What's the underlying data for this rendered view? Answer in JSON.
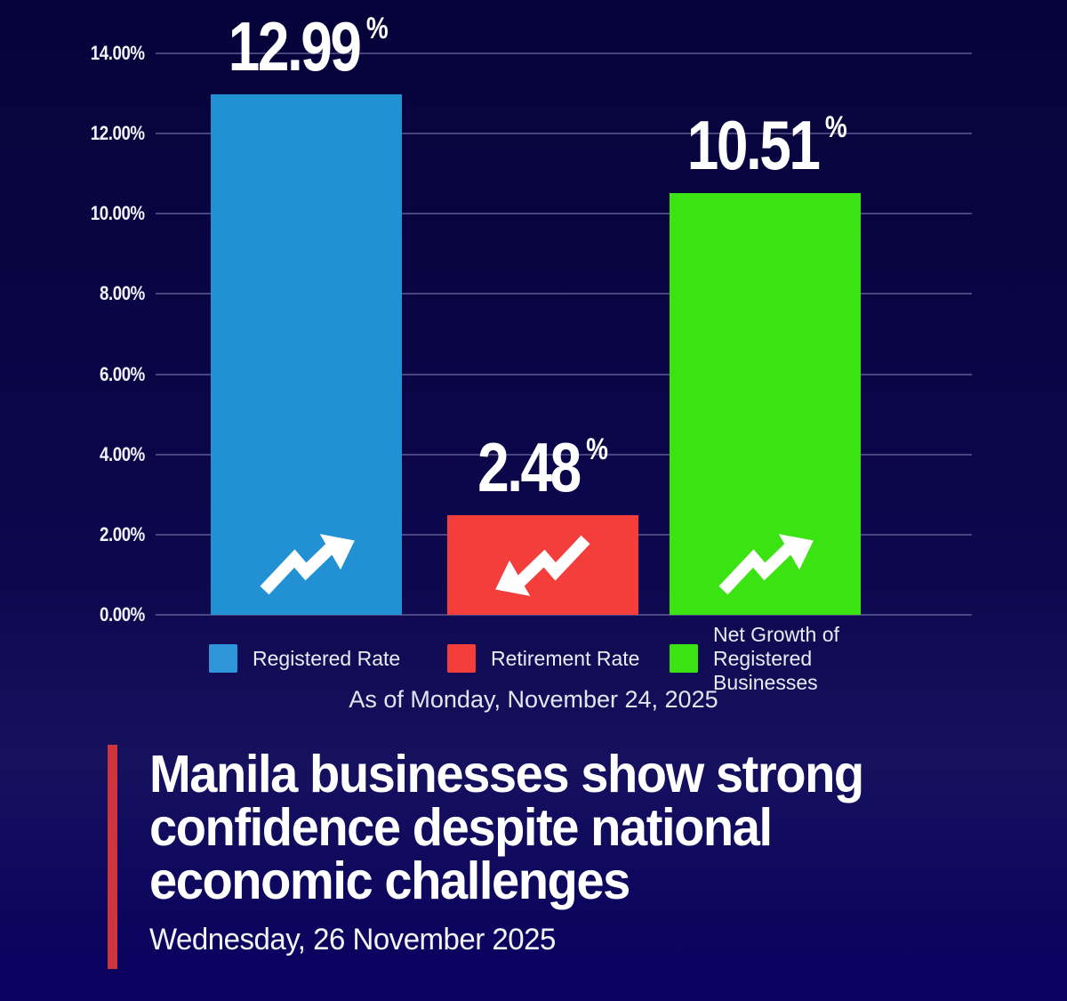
{
  "chart_data": {
    "type": "bar",
    "title": "",
    "categories": [
      "Registered Rate",
      "Retirement Rate",
      "Net Growth of Registered Businesses"
    ],
    "values": [
      12.99,
      2.48,
      10.51
    ],
    "value_labels": [
      "12.99",
      "2.48",
      "10.51"
    ],
    "unit": "%",
    "bar_colors": [
      "#2191d4",
      "#f33e3c",
      "#3ce312"
    ],
    "trends": [
      "up",
      "down",
      "up"
    ],
    "ylim": [
      0,
      14
    ],
    "yticks": [
      "14.00%",
      "12.00%",
      "10.00%",
      "8.00%",
      "6.00%",
      "4.00%",
      "2.00%",
      "0.00%"
    ],
    "grid": true,
    "legend_position": "bottom",
    "legend": [
      {
        "label": "Registered Rate",
        "color": "#2e96d8"
      },
      {
        "label": "Retirement Rate",
        "color": "#f33e3c"
      },
      {
        "label": "Net Growth of Registered Businesses",
        "color": "#3ce312"
      }
    ],
    "as_of": "As of Monday, November 24, 2025"
  },
  "headline": {
    "lines": [
      "Manila businesses show strong",
      "confidence despite national",
      "economic challenges"
    ],
    "date": "Wednesday, 26 November 2025",
    "accent_color": "#cf353c"
  },
  "icons": {
    "trend_up": "trend-up-arrow",
    "trend_down": "trend-down-arrow"
  }
}
